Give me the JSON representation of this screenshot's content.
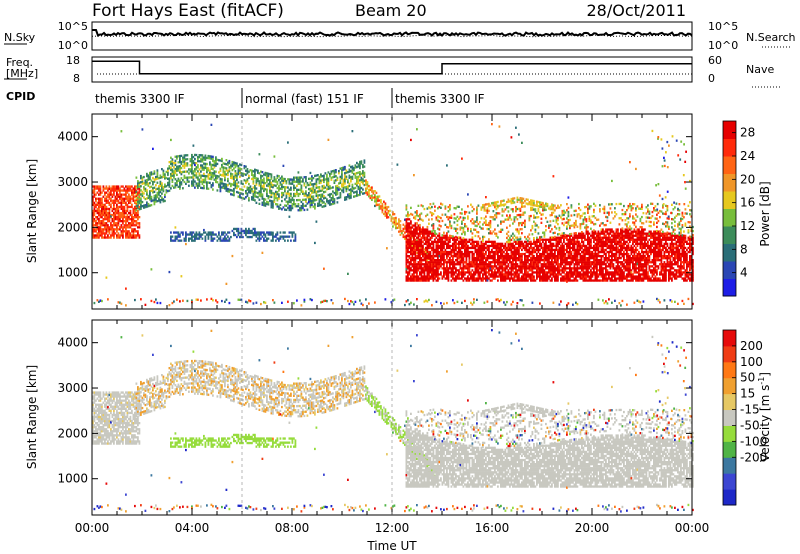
{
  "header": {
    "title": "Fort Hays East (fitACF)",
    "beam": "Beam 20",
    "date": "28/Oct/2011"
  },
  "noise_panel": {
    "left_label": "N.Sky",
    "right_label": "N.Search",
    "left_ticks": [
      "10^5",
      "10^0"
    ],
    "right_ticks": [
      "10^5",
      "10^0"
    ]
  },
  "freq_panel": {
    "left_label_1": "Freq.",
    "left_label_2": "[MHz]",
    "right_label": "Nave",
    "left_ticks": [
      "18",
      "8"
    ],
    "right_ticks": [
      "60",
      "0"
    ]
  },
  "cpid": {
    "label": "CPID",
    "segments": [
      {
        "start": 0,
        "end": 6,
        "text": "themis 3300 IF"
      },
      {
        "start": 6,
        "end": 12,
        "text": "normal (fast) 151 IF"
      },
      {
        "start": 12,
        "end": 24,
        "text": "themis 3300 IF"
      }
    ]
  },
  "colors": {
    "power": [
      "#1e1ee6",
      "#2a46b4",
      "#2a6e78",
      "#3c8c5a",
      "#78be3c",
      "#e6c81e",
      "#f09628",
      "#ff6414",
      "#ff2a0a",
      "#e60000"
    ],
    "velocity": [
      "#1e28c8",
      "#3c46d2",
      "#3c78a0",
      "#50b446",
      "#96dc3c",
      "#c8c8c0",
      "#e6c864",
      "#f0a030",
      "#ff7814",
      "#f03c14",
      "#e60a0a"
    ]
  },
  "chart_data": [
    {
      "type": "heatmap",
      "name": "Power",
      "xlabel": "",
      "ylabel": "Slant Range [km]",
      "xlim": [
        0,
        24
      ],
      "ylim": [
        200,
        4500
      ],
      "ytick_labels": [
        "1000",
        "2000",
        "3000",
        "4000"
      ],
      "colorbar_label": "Power [dB]",
      "colorbar_ticks": [
        "4",
        "8",
        "12",
        "16",
        "20",
        "24",
        "28"
      ],
      "colorbar_range": [
        0,
        30
      ]
    },
    {
      "type": "heatmap",
      "name": "Velocity",
      "xlabel": "Time UT",
      "ylabel": "Slant Range [km]",
      "xlim": [
        0,
        24
      ],
      "ylim": [
        200,
        4500
      ],
      "ytick_labels": [
        "1000",
        "2000",
        "3000",
        "4000"
      ],
      "xtick_labels": [
        "00:00",
        "04:00",
        "08:00",
        "12:00",
        "16:00",
        "20:00",
        "00:00"
      ],
      "colorbar_label_main": "Velocity [m s",
      "colorbar_label_sup": "-1",
      "colorbar_label_end": "]",
      "colorbar_ticks": [
        "200",
        "100",
        "50",
        "15",
        "-15",
        "-50",
        "-100",
        "-200"
      ]
    }
  ]
}
